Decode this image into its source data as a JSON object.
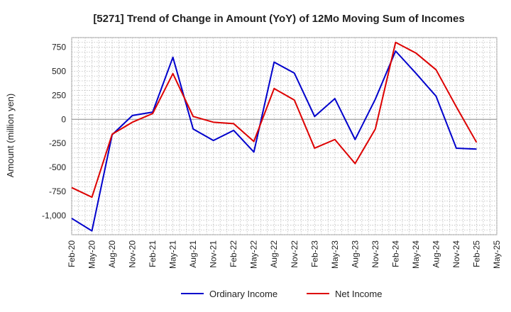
{
  "chart_data": {
    "type": "line",
    "title": "[5271]  Trend of Change in Amount (YoY) of 12Mo Moving Sum of Incomes",
    "xlabel": "",
    "ylabel": "Amount (million yen)",
    "categories": [
      "Feb-20",
      "May-20",
      "Aug-20",
      "Nov-20",
      "Feb-21",
      "May-21",
      "Aug-21",
      "Nov-21",
      "Feb-22",
      "May-22",
      "Aug-22",
      "Nov-22",
      "Feb-23",
      "May-23",
      "Aug-23",
      "Nov-23",
      "Feb-24",
      "May-24",
      "Aug-24",
      "Nov-24",
      "Feb-25",
      "May-25"
    ],
    "ylim": [
      -1200,
      850
    ],
    "yticks": [
      750,
      500,
      250,
      0,
      -250,
      -500,
      -750,
      -1000
    ],
    "ytick_labels": [
      "750",
      "500",
      "250",
      "0",
      "-250",
      "-500",
      "-750",
      "-1,000"
    ],
    "grid": true,
    "legend_position": "bottom",
    "series": [
      {
        "name": "Ordinary Income",
        "color": "#0000cc",
        "values": [
          -1030,
          -1160,
          -160,
          40,
          75,
          645,
          -100,
          -220,
          -115,
          -340,
          595,
          480,
          30,
          215,
          -210,
          210,
          710,
          480,
          240,
          -300,
          -310,
          null
        ]
      },
      {
        "name": "Net Income",
        "color": "#dd0000",
        "values": [
          -710,
          -810,
          -155,
          -30,
          60,
          475,
          30,
          -30,
          -45,
          -230,
          320,
          200,
          -300,
          -210,
          -460,
          -100,
          800,
          690,
          515,
          130,
          -240,
          null
        ]
      }
    ]
  }
}
